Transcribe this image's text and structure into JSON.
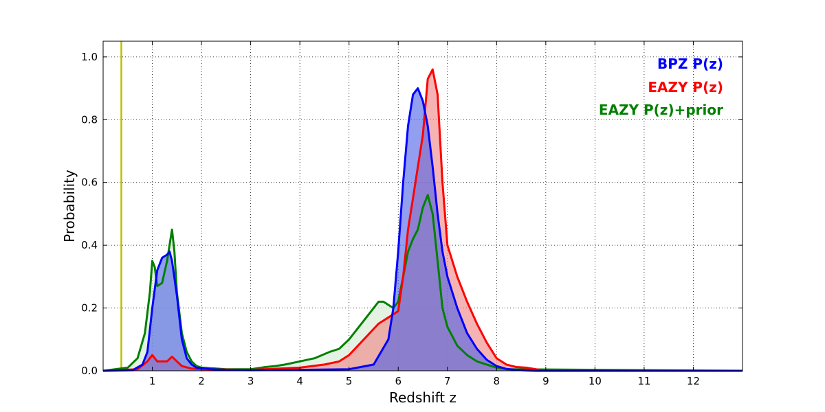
{
  "chart_data": {
    "type": "area",
    "xlabel": "Redshift z",
    "ylabel": "Probability",
    "xlim": [
      0,
      13
    ],
    "ylim": [
      0,
      1.05
    ],
    "xticks": [
      1,
      2,
      3,
      4,
      5,
      6,
      7,
      8,
      9,
      10,
      11,
      12
    ],
    "yticks": [
      0.0,
      0.2,
      0.4,
      0.6,
      0.8,
      1.0
    ],
    "grid": true,
    "legend_position": "top-right",
    "reference_line": {
      "x": 0.37,
      "color": "#bfbf00"
    },
    "series": [
      {
        "name": "BPZ P(z)",
        "color": "#0000ff",
        "fill": "#4a5de6",
        "x": [
          0,
          0.6,
          0.8,
          0.9,
          1.0,
          1.1,
          1.2,
          1.3,
          1.35,
          1.4,
          1.5,
          1.6,
          1.7,
          1.8,
          1.9,
          2.0,
          2.2,
          2.5,
          3.0,
          4.0,
          5.0,
          5.5,
          5.8,
          5.9,
          6.0,
          6.1,
          6.2,
          6.3,
          6.4,
          6.5,
          6.6,
          6.7,
          6.8,
          6.9,
          7.0,
          7.2,
          7.4,
          7.6,
          7.8,
          8.0,
          8.2,
          8.4,
          8.6,
          8.8,
          13
        ],
        "y": [
          0,
          0.002,
          0.02,
          0.06,
          0.2,
          0.32,
          0.36,
          0.37,
          0.38,
          0.35,
          0.24,
          0.1,
          0.04,
          0.02,
          0.01,
          0.008,
          0.005,
          0.003,
          0.002,
          0.003,
          0.005,
          0.02,
          0.1,
          0.2,
          0.38,
          0.6,
          0.78,
          0.88,
          0.9,
          0.86,
          0.78,
          0.65,
          0.5,
          0.38,
          0.3,
          0.2,
          0.12,
          0.07,
          0.035,
          0.015,
          0.006,
          0.003,
          0.001,
          0,
          0
        ]
      },
      {
        "name": "EAZY P(z)",
        "color": "#ff0000",
        "fill": "#f08080",
        "x": [
          0,
          0.7,
          0.9,
          1.0,
          1.1,
          1.2,
          1.3,
          1.4,
          1.5,
          1.6,
          1.8,
          2.0,
          3.0,
          4.0,
          4.5,
          4.8,
          5.0,
          5.3,
          5.6,
          5.8,
          6.0,
          6.1,
          6.2,
          6.3,
          6.4,
          6.5,
          6.6,
          6.7,
          6.8,
          6.9,
          7.0,
          7.2,
          7.4,
          7.6,
          7.8,
          8.0,
          8.2,
          8.4,
          8.6,
          8.8,
          9.0,
          13
        ],
        "y": [
          0,
          0.005,
          0.03,
          0.05,
          0.03,
          0.03,
          0.03,
          0.045,
          0.03,
          0.015,
          0.007,
          0.005,
          0.003,
          0.01,
          0.02,
          0.03,
          0.05,
          0.1,
          0.15,
          0.17,
          0.19,
          0.3,
          0.45,
          0.55,
          0.65,
          0.75,
          0.93,
          0.96,
          0.88,
          0.6,
          0.4,
          0.3,
          0.22,
          0.15,
          0.09,
          0.04,
          0.02,
          0.012,
          0.01,
          0.005,
          0,
          0
        ]
      },
      {
        "name": "EAZY P(z)+prior",
        "color": "#008000",
        "fill": "#d8ecd8",
        "x": [
          0,
          0.5,
          0.7,
          0.85,
          0.95,
          1.0,
          1.05,
          1.1,
          1.2,
          1.3,
          1.4,
          1.45,
          1.5,
          1.6,
          1.7,
          1.8,
          1.9,
          2.0,
          2.2,
          2.5,
          3.0,
          3.3,
          3.5,
          3.7,
          4.0,
          4.3,
          4.6,
          4.8,
          5.0,
          5.3,
          5.5,
          5.6,
          5.7,
          5.8,
          5.9,
          6.0,
          6.1,
          6.2,
          6.3,
          6.4,
          6.5,
          6.6,
          6.7,
          6.8,
          6.9,
          7.0,
          7.2,
          7.4,
          7.6,
          7.8,
          8.0,
          8.2,
          13
        ],
        "y": [
          0,
          0.01,
          0.04,
          0.12,
          0.25,
          0.35,
          0.33,
          0.27,
          0.28,
          0.35,
          0.45,
          0.38,
          0.25,
          0.12,
          0.06,
          0.03,
          0.015,
          0.01,
          0.008,
          0.005,
          0.005,
          0.012,
          0.015,
          0.02,
          0.03,
          0.04,
          0.06,
          0.07,
          0.1,
          0.16,
          0.2,
          0.22,
          0.22,
          0.21,
          0.2,
          0.22,
          0.3,
          0.38,
          0.42,
          0.45,
          0.52,
          0.56,
          0.5,
          0.35,
          0.2,
          0.14,
          0.08,
          0.05,
          0.03,
          0.02,
          0.01,
          0.005,
          0
        ]
      }
    ]
  }
}
